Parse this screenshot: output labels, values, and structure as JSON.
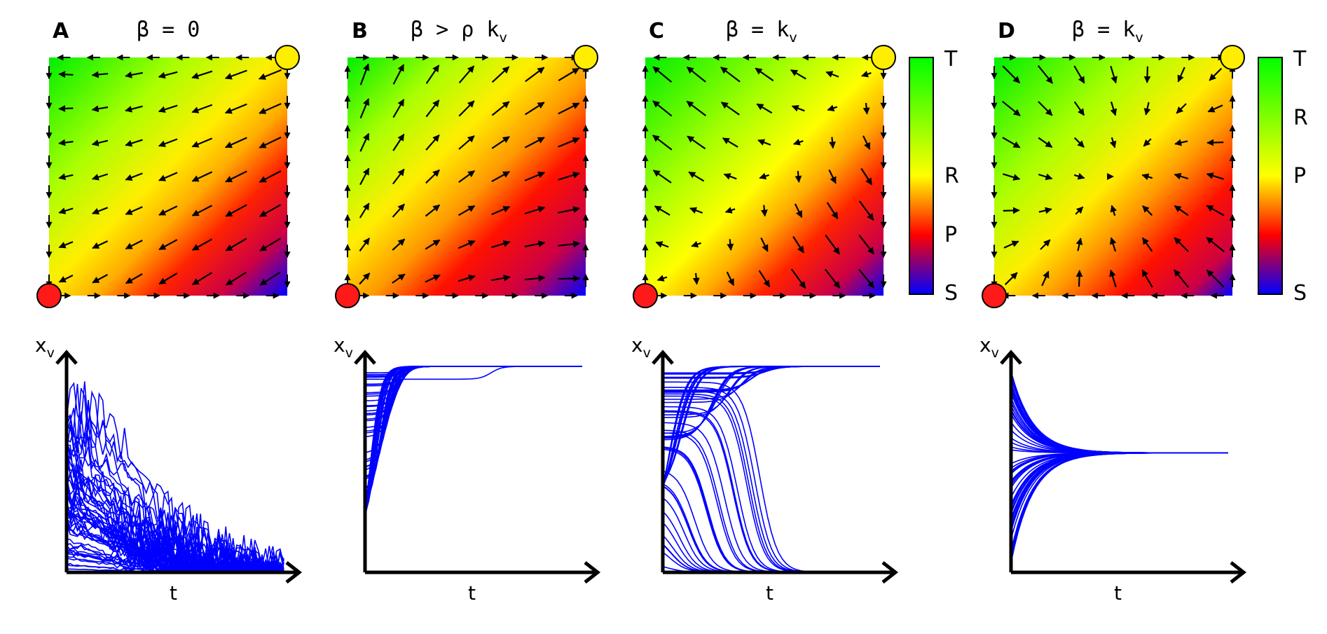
{
  "panels": [
    {
      "letter": "A",
      "title": "β = 0",
      "title_sub": "",
      "field": "A"
    },
    {
      "letter": "B",
      "title": "β > ρ k",
      "title_sub": "v",
      "field": "B"
    },
    {
      "letter": "C",
      "title": "β = k",
      "title_sub": "v",
      "field": "C"
    },
    {
      "letter": "D",
      "title": "β = k",
      "title_sub": "v",
      "field": "D"
    }
  ],
  "colorbar": {
    "labels": [
      "T",
      "R",
      "P",
      "S"
    ],
    "stops": [
      "#00ff00",
      "#ffff00",
      "#ff0000",
      "#0000ff"
    ]
  },
  "corner_markers": {
    "top_right_color": "#ffee00",
    "bottom_left_color": "#ff1a1a"
  },
  "trajectories": {
    "line_color": "#0000ff",
    "ylabel": "x",
    "ylabel_sub": "v",
    "xlabel": "t",
    "behaviors": [
      "decay",
      "rise",
      "bistable",
      "converge"
    ]
  }
}
